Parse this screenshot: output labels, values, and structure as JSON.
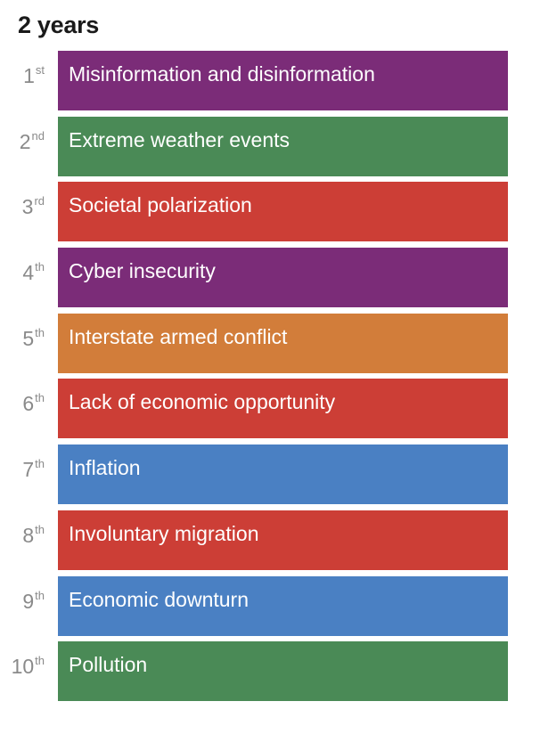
{
  "title": "2 years",
  "colors": {
    "purple": "#7b2c78",
    "green": "#4a8a56",
    "red": "#cc3e36",
    "orange": "#d27d3a",
    "blue": "#4a80c3",
    "rank_text": "#8a8a8a"
  },
  "risks": [
    {
      "rank": "1",
      "suffix": "st",
      "label": "Misinformation and disinformation",
      "color": "#7b2c78"
    },
    {
      "rank": "2",
      "suffix": "nd",
      "label": "Extreme weather events",
      "color": "#4a8a56"
    },
    {
      "rank": "3",
      "suffix": "rd",
      "label": "Societal polarization",
      "color": "#cc3e36"
    },
    {
      "rank": "4",
      "suffix": "th",
      "label": "Cyber insecurity",
      "color": "#7b2c78"
    },
    {
      "rank": "5",
      "suffix": "th",
      "label": "Interstate armed conflict",
      "color": "#d27d3a"
    },
    {
      "rank": "6",
      "suffix": "th",
      "label": "Lack of economic opportunity",
      "color": "#cc3e36"
    },
    {
      "rank": "7",
      "suffix": "th",
      "label": "Inflation",
      "color": "#4a80c3"
    },
    {
      "rank": "8",
      "suffix": "th",
      "label": "Involuntary migration",
      "color": "#cc3e36"
    },
    {
      "rank": "9",
      "suffix": "th",
      "label": "Economic downturn",
      "color": "#4a80c3"
    },
    {
      "rank": "10",
      "suffix": "th",
      "label": "Pollution",
      "color": "#4a8a56"
    }
  ]
}
